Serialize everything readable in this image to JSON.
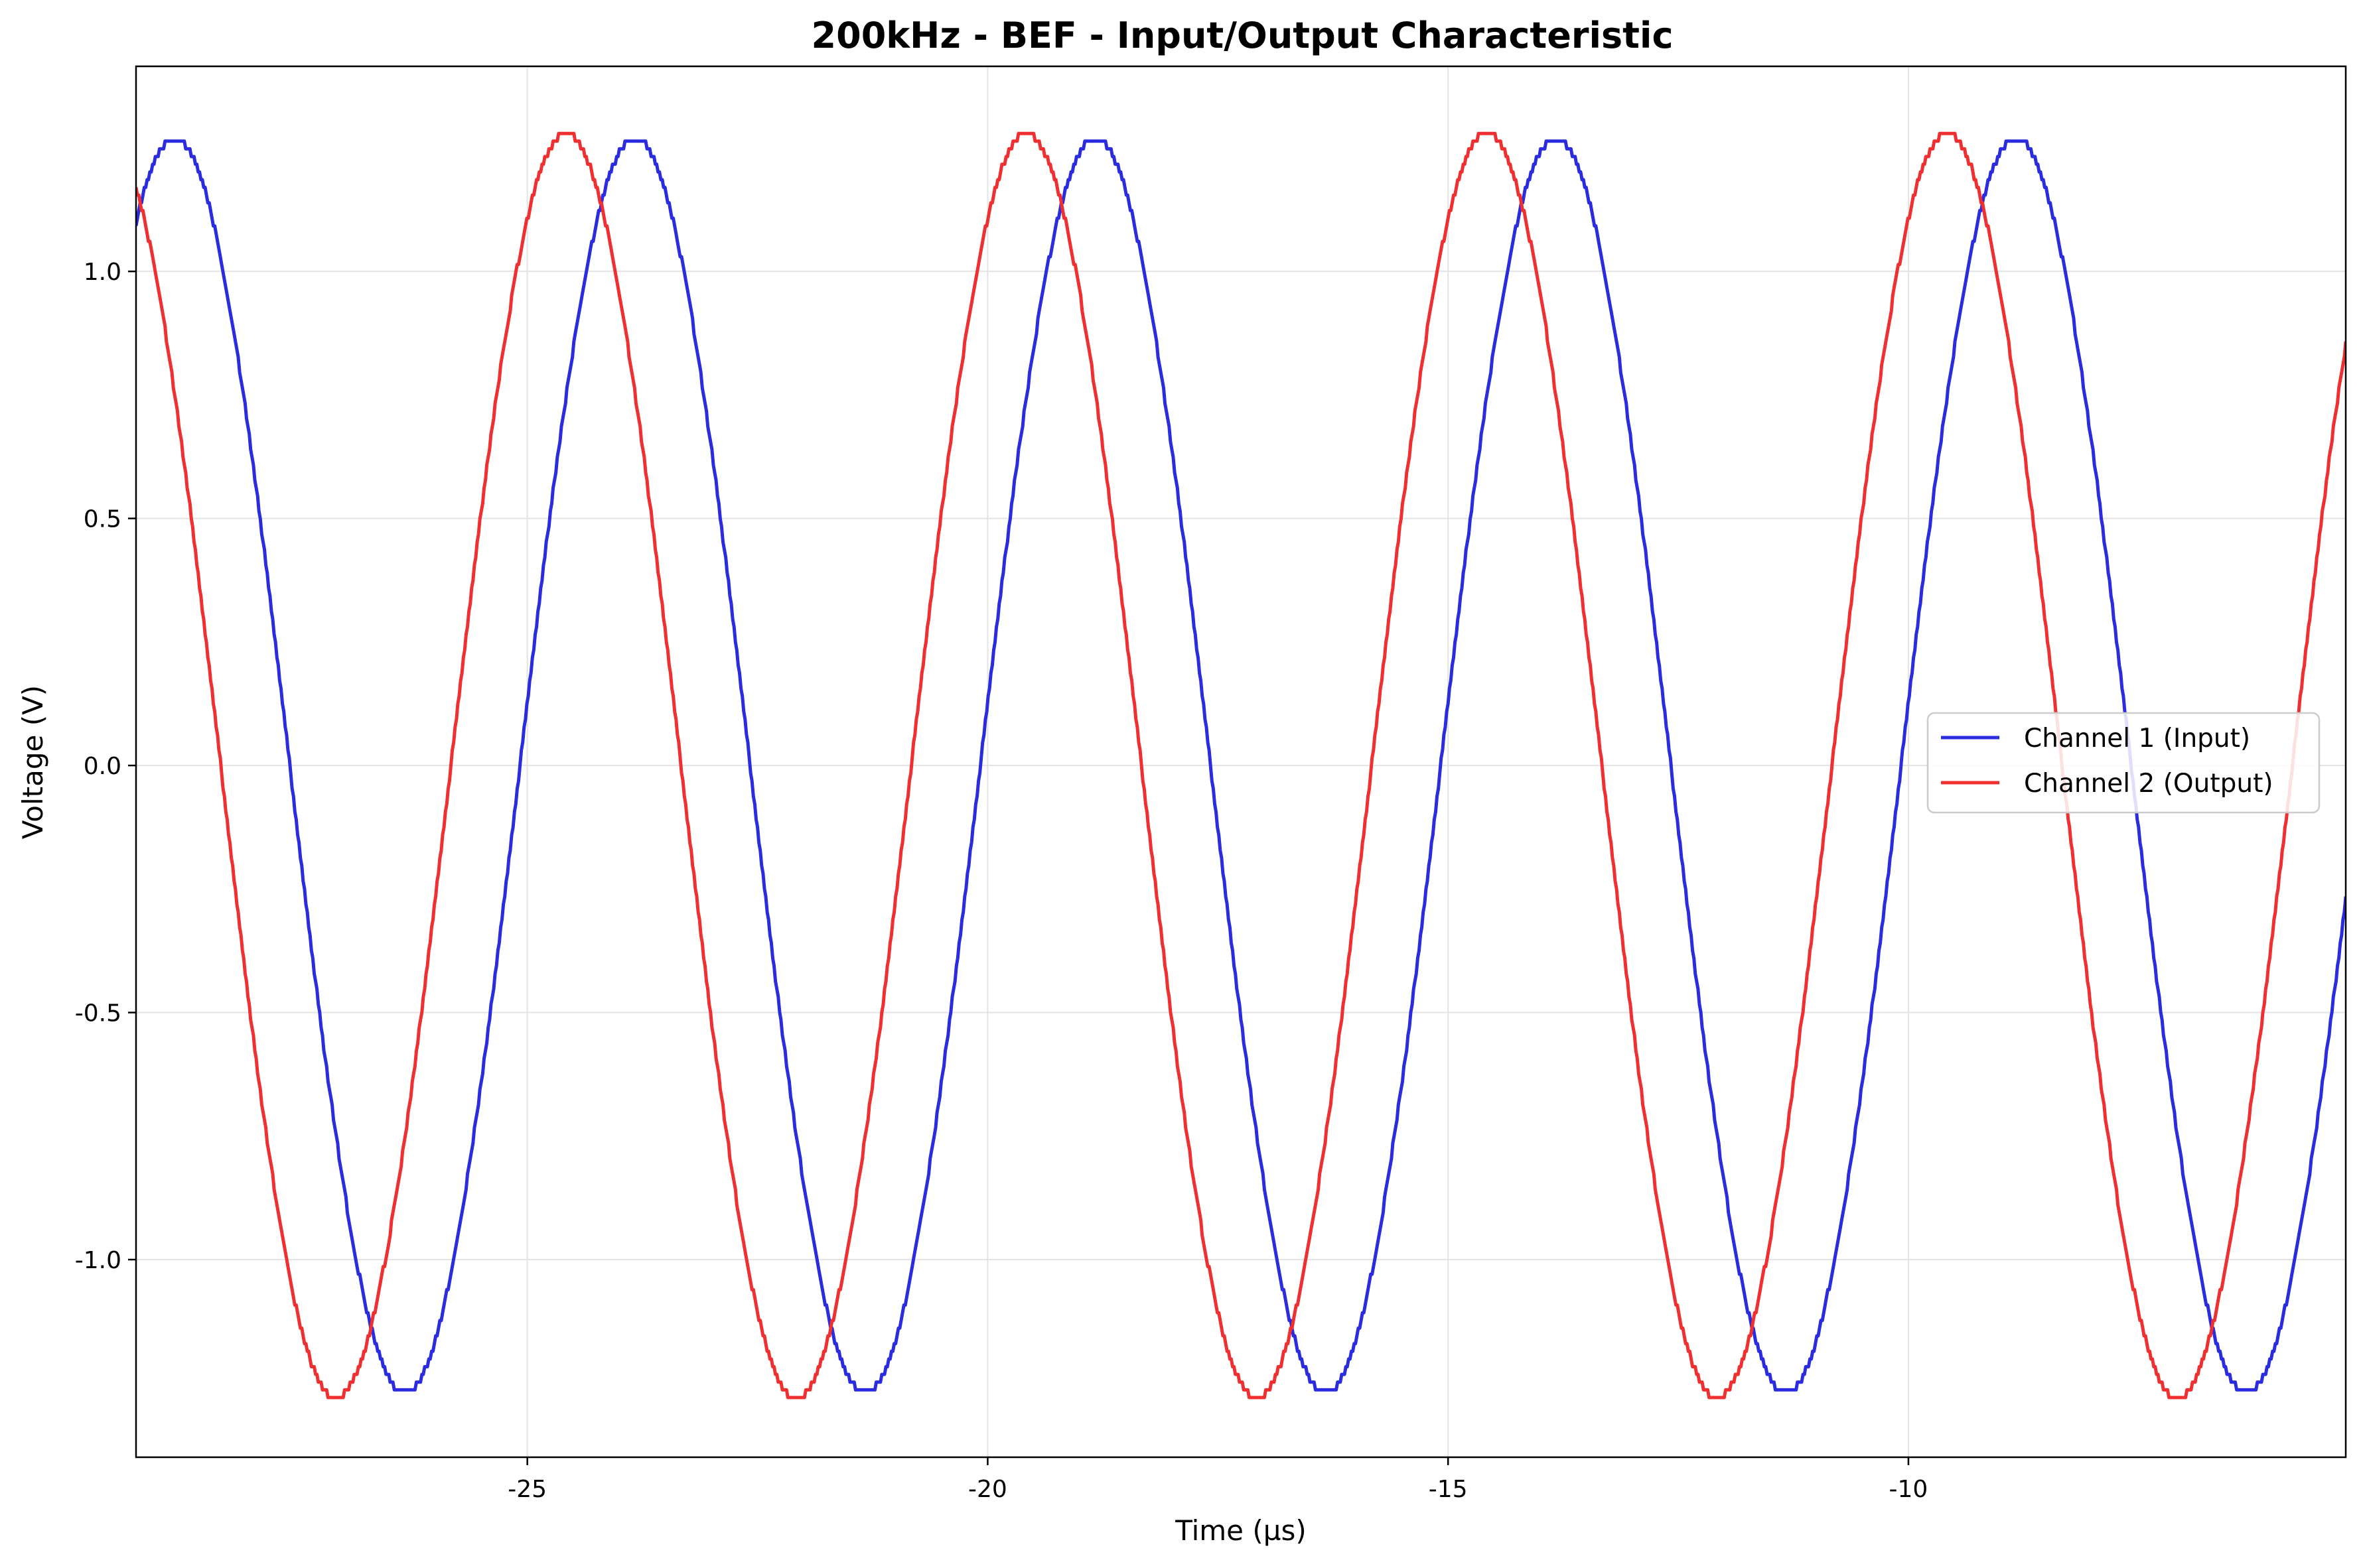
{
  "chart_data": {
    "type": "line",
    "title": "200kHz - BEF - Input/Output Characteristic",
    "xlabel": "Time (µs)",
    "ylabel": "Voltage (V)",
    "xlim": [
      -29.25,
      -5.25
    ],
    "ylim": [
      -1.4,
      1.415
    ],
    "xticks": [
      -25,
      -20,
      -15,
      -10
    ],
    "xtick_labels": [
      "-25",
      "-20",
      "-15",
      "-10"
    ],
    "yticks": [
      -1.0,
      -0.5,
      0.0,
      0.5,
      1.0
    ],
    "ytick_labels": [
      "-1.0",
      "-0.5",
      "0.0",
      "0.5",
      "1.0"
    ],
    "grid": true,
    "legend_position": "center-right",
    "series": [
      {
        "name": "Channel 1 (Input)",
        "color": "#2b2be0",
        "amplitude": 1.27,
        "frequency_khz": 200,
        "period_us": 5.0,
        "peak_times_us": [
          -28.83,
          -23.83,
          -18.83,
          -13.83,
          -8.83
        ],
        "trough_times_us": [
          -26.33,
          -21.33,
          -16.33,
          -11.33,
          -6.33
        ]
      },
      {
        "name": "Channel 2 (Output)",
        "color": "#f03030",
        "amplitude": 1.28,
        "frequency_khz": 200,
        "period_us": 5.0,
        "peak_times_us": [
          -24.58,
          -19.58,
          -14.58,
          -9.58
        ],
        "trough_times_us": [
          -27.08,
          -22.08,
          -17.08,
          -12.08,
          -7.08
        ]
      }
    ]
  }
}
